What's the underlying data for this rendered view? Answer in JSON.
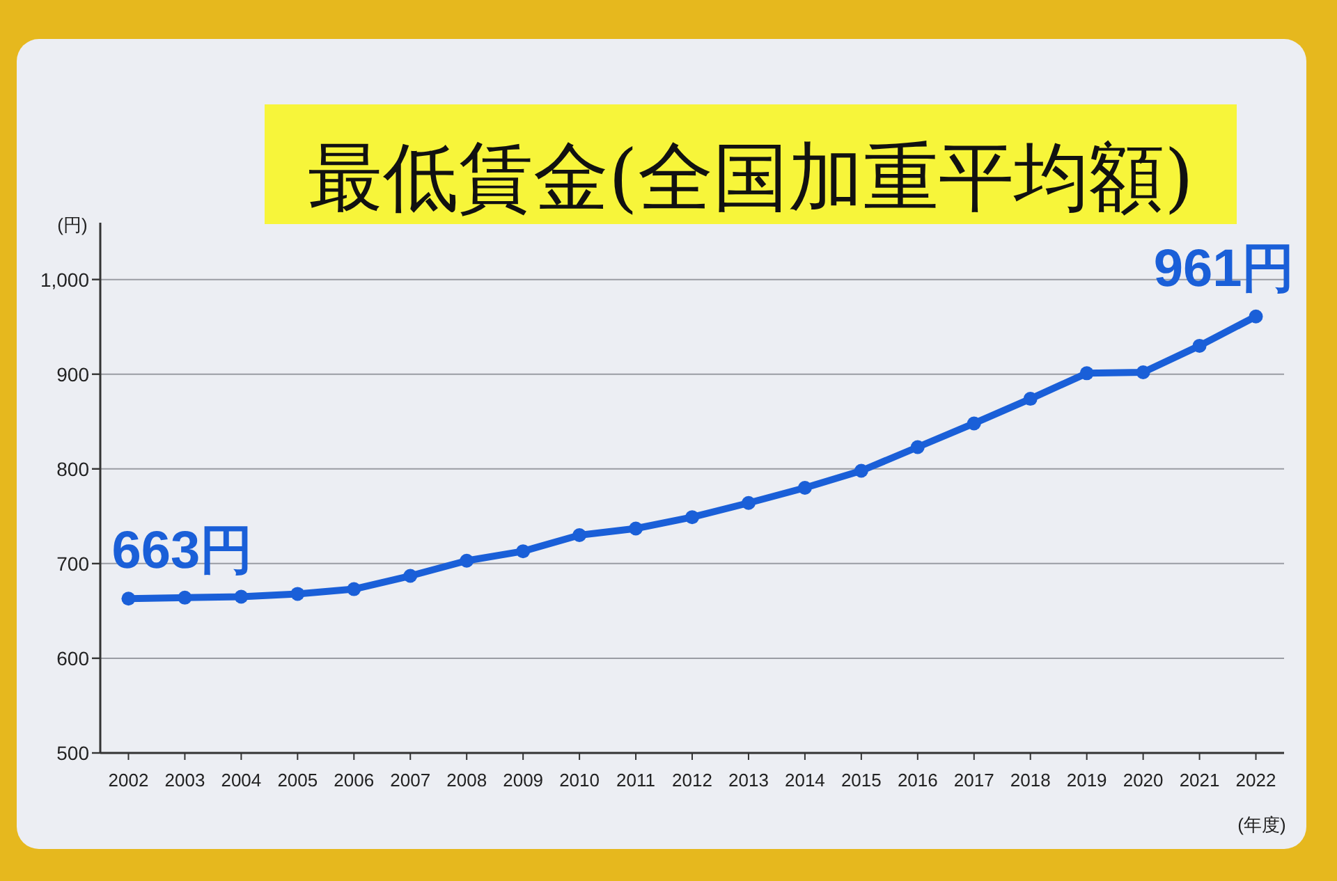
{
  "chart_data": {
    "type": "line",
    "title": "最低賃金(全国加重平均額)",
    "ylabel": "(円)",
    "xlabel": "(年度)",
    "categories": [
      "2002",
      "2003",
      "2004",
      "2005",
      "2006",
      "2007",
      "2008",
      "2009",
      "2010",
      "2011",
      "2012",
      "2013",
      "2014",
      "2015",
      "2016",
      "2017",
      "2018",
      "2019",
      "2020",
      "2021",
      "2022"
    ],
    "series": [
      {
        "color": "#1a5fd8",
        "values": [
          663,
          664,
          665,
          668,
          673,
          687,
          703,
          713,
          730,
          737,
          749,
          764,
          780,
          798,
          823,
          848,
          874,
          901,
          902,
          930,
          961
        ]
      }
    ],
    "ylim": [
      500,
      1060
    ],
    "yticks": [
      500,
      600,
      700,
      800,
      900,
      {
        "value": 1000,
        "label": "1,000"
      }
    ],
    "grid": "y",
    "marker": "circle",
    "line_style": "solid",
    "annotations": [
      {
        "text": "663円",
        "x": "2002",
        "y": 663
      },
      {
        "text": "961円",
        "x": "2022",
        "y": 961
      }
    ]
  }
}
